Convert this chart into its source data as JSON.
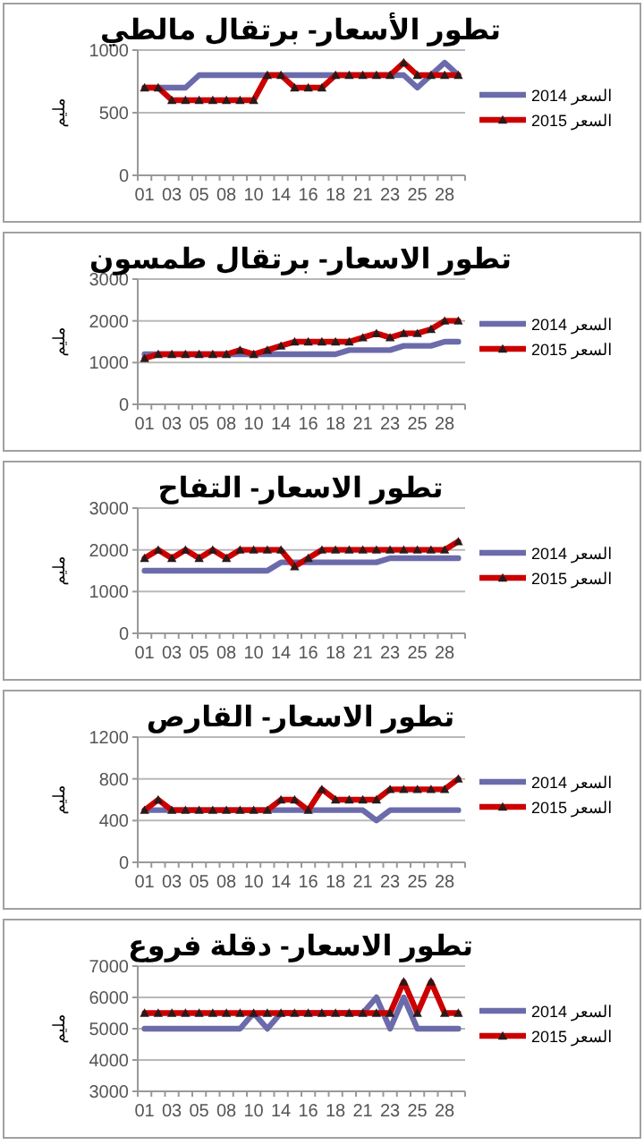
{
  "chart_data": [
    {
      "type": "line",
      "title": "تطور الأسعار- برتقال مالطي",
      "ylabel": "مليم",
      "categories": [
        "01",
        null,
        "03",
        null,
        "05",
        null,
        "08",
        null,
        "10",
        null,
        "14",
        null,
        "16",
        null,
        "18",
        null,
        "21",
        null,
        "23",
        null,
        "25",
        null,
        "28",
        null
      ],
      "ylim": [
        0,
        1000
      ],
      "yticks": [
        0,
        500,
        1000
      ],
      "grid": "y",
      "legend": "right",
      "series": [
        {
          "name": "السعر 2014",
          "color": "#6b6bab",
          "marker": "none",
          "values": [
            700,
            700,
            700,
            700,
            800,
            800,
            800,
            800,
            800,
            800,
            800,
            800,
            800,
            800,
            800,
            800,
            800,
            800,
            800,
            800,
            700,
            800,
            900,
            800
          ]
        },
        {
          "name": "السعر 2015",
          "color": "#cc0000",
          "marker": "triangle",
          "values": [
            700,
            700,
            600,
            600,
            600,
            600,
            600,
            600,
            600,
            800,
            800,
            700,
            700,
            700,
            800,
            800,
            800,
            800,
            800,
            900,
            800,
            800,
            800,
            800
          ]
        }
      ]
    },
    {
      "type": "line",
      "title": "تطور الاسعار- برتقال طمسون",
      "ylabel": "مليم",
      "categories": [
        "01",
        null,
        "03",
        null,
        "05",
        null,
        "08",
        null,
        "10",
        null,
        "14",
        null,
        "16",
        null,
        "18",
        null,
        "21",
        null,
        "23",
        null,
        "25",
        null,
        "28",
        null
      ],
      "ylim": [
        0,
        3000
      ],
      "yticks": [
        0,
        1000,
        2000,
        3000
      ],
      "grid": "y",
      "legend": "right",
      "series": [
        {
          "name": "السعر 2014",
          "color": "#6b6bab",
          "marker": "none",
          "values": [
            1200,
            1200,
            1200,
            1200,
            1200,
            1200,
            1200,
            1200,
            1200,
            1200,
            1200,
            1200,
            1200,
            1200,
            1200,
            1300,
            1300,
            1300,
            1300,
            1400,
            1400,
            1400,
            1500,
            1500
          ]
        },
        {
          "name": "السعر 2015",
          "color": "#cc0000",
          "marker": "triangle",
          "values": [
            1100,
            1200,
            1200,
            1200,
            1200,
            1200,
            1200,
            1300,
            1200,
            1300,
            1400,
            1500,
            1500,
            1500,
            1500,
            1500,
            1600,
            1700,
            1600,
            1700,
            1700,
            1800,
            2000,
            2000
          ]
        }
      ]
    },
    {
      "type": "line",
      "title": "تطور الاسعار- التفاح",
      "ylabel": "مليم",
      "categories": [
        "01",
        null,
        "03",
        null,
        "05",
        null,
        "08",
        null,
        "10",
        null,
        "14",
        null,
        "16",
        null,
        "18",
        null,
        "21",
        null,
        "23",
        null,
        "25",
        null,
        "28",
        null
      ],
      "ylim": [
        0,
        3000
      ],
      "yticks": [
        0,
        1000,
        2000,
        3000
      ],
      "grid": "y",
      "legend": "right",
      "series": [
        {
          "name": "السعر 2014",
          "color": "#6b6bab",
          "marker": "none",
          "values": [
            1500,
            1500,
            1500,
            1500,
            1500,
            1500,
            1500,
            1500,
            1500,
            1500,
            1700,
            1700,
            1700,
            1700,
            1700,
            1700,
            1700,
            1700,
            1800,
            1800,
            1800,
            1800,
            1800,
            1800
          ]
        },
        {
          "name": "السعر 2015",
          "color": "#cc0000",
          "marker": "triangle",
          "values": [
            1800,
            2000,
            1800,
            2000,
            1800,
            2000,
            1800,
            2000,
            2000,
            2000,
            2000,
            1600,
            1800,
            2000,
            2000,
            2000,
            2000,
            2000,
            2000,
            2000,
            2000,
            2000,
            2000,
            2200
          ]
        }
      ]
    },
    {
      "type": "line",
      "title": "تطور الاسعار- القارص",
      "ylabel": "مليم",
      "categories": [
        "01",
        null,
        "03",
        null,
        "05",
        null,
        "08",
        null,
        "10",
        null,
        "14",
        null,
        "16",
        null,
        "18",
        null,
        "21",
        null,
        "23",
        null,
        "25",
        null,
        "28",
        null
      ],
      "ylim": [
        0,
        1200
      ],
      "yticks": [
        0,
        400,
        800,
        1200
      ],
      "grid": "y",
      "legend": "right",
      "series": [
        {
          "name": "السعر 2014",
          "color": "#6b6bab",
          "marker": "none",
          "values": [
            500,
            500,
            500,
            500,
            500,
            500,
            500,
            500,
            500,
            500,
            500,
            500,
            500,
            500,
            500,
            500,
            500,
            400,
            500,
            500,
            500,
            500,
            500,
            500
          ]
        },
        {
          "name": "السعر 2015",
          "color": "#cc0000",
          "marker": "triangle",
          "values": [
            500,
            600,
            500,
            500,
            500,
            500,
            500,
            500,
            500,
            500,
            600,
            600,
            500,
            700,
            600,
            600,
            600,
            600,
            700,
            700,
            700,
            700,
            700,
            800
          ]
        }
      ]
    },
    {
      "type": "line",
      "title": "تطور الاسعار- دقلة فروع",
      "ylabel": "مليم",
      "categories": [
        "01",
        null,
        "03",
        null,
        "05",
        null,
        "08",
        null,
        "10",
        null,
        "14",
        null,
        "16",
        null,
        "18",
        null,
        "21",
        null,
        "23",
        null,
        "25",
        null,
        "28",
        null
      ],
      "ylim": [
        3000,
        7000
      ],
      "yticks": [
        3000,
        4000,
        5000,
        6000,
        7000
      ],
      "grid": "y",
      "legend": "right",
      "series": [
        {
          "name": "السعر 2014",
          "color": "#6b6bab",
          "marker": "none",
          "values": [
            5000,
            5000,
            5000,
            5000,
            5000,
            5000,
            5000,
            5000,
            5500,
            5000,
            5500,
            5500,
            5500,
            5500,
            5500,
            5500,
            5500,
            6000,
            5000,
            6000,
            5000,
            5000,
            5000,
            5000
          ]
        },
        {
          "name": "السعر 2015",
          "color": "#cc0000",
          "marker": "triangle",
          "values": [
            5500,
            5500,
            5500,
            5500,
            5500,
            5500,
            5500,
            5500,
            5500,
            5500,
            5500,
            5500,
            5500,
            5500,
            5500,
            5500,
            5500,
            5500,
            5500,
            6500,
            5500,
            6500,
            5500,
            5500
          ]
        }
      ]
    }
  ]
}
